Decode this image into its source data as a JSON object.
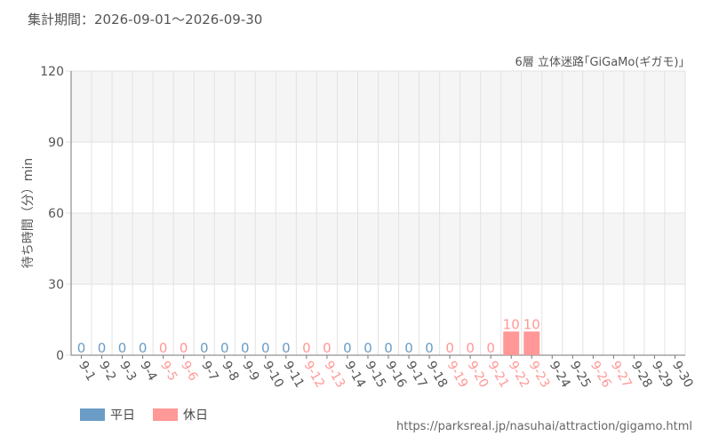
{
  "header": {
    "period": "集計期間：2026-09-01～2026-09-30"
  },
  "footer": {
    "source_url": "https://parksreal.jp/nasuhai/attraction/gigamo.html"
  },
  "colors": {
    "weekday": "#6a9cc6",
    "holiday": "#ff9896",
    "grid_band": "#f5f5f5",
    "axis": "#777777"
  },
  "chart_data": {
    "type": "bar",
    "title": "6層 立体迷路｢GiGaMo(ギガモ)｣",
    "ylabel": "待ち時間（分）min",
    "xlabel": "",
    "ylim": [
      0,
      120
    ],
    "yticks": [
      0,
      30,
      60,
      90,
      120
    ],
    "grid": true,
    "legend_position": "bottom-left",
    "categories": [
      "9-1",
      "9-2",
      "9-3",
      "9-4",
      "9-5",
      "9-6",
      "9-7",
      "9-8",
      "9-9",
      "9-10",
      "9-11",
      "9-12",
      "9-13",
      "9-14",
      "9-15",
      "9-16",
      "9-17",
      "9-18",
      "9-19",
      "9-20",
      "9-21",
      "9-22",
      "9-23",
      "9-24",
      "9-25",
      "9-26",
      "9-27",
      "9-28",
      "9-29",
      "9-30"
    ],
    "values": [
      0,
      0,
      0,
      0,
      0,
      0,
      0,
      0,
      0,
      0,
      0,
      0,
      0,
      0,
      0,
      0,
      0,
      0,
      0,
      0,
      0,
      10,
      10,
      null,
      null,
      null,
      null,
      null,
      null,
      null
    ],
    "day_type": [
      "平日",
      "平日",
      "平日",
      "平日",
      "休日",
      "休日",
      "平日",
      "平日",
      "平日",
      "平日",
      "平日",
      "休日",
      "休日",
      "平日",
      "平日",
      "平日",
      "平日",
      "平日",
      "休日",
      "休日",
      "休日",
      "休日",
      "休日",
      "平日",
      "平日",
      "休日",
      "休日",
      "平日",
      "平日",
      "平日"
    ],
    "series": [
      {
        "name": "平日",
        "color": "#6a9cc6"
      },
      {
        "name": "休日",
        "color": "#ff9896"
      }
    ]
  }
}
